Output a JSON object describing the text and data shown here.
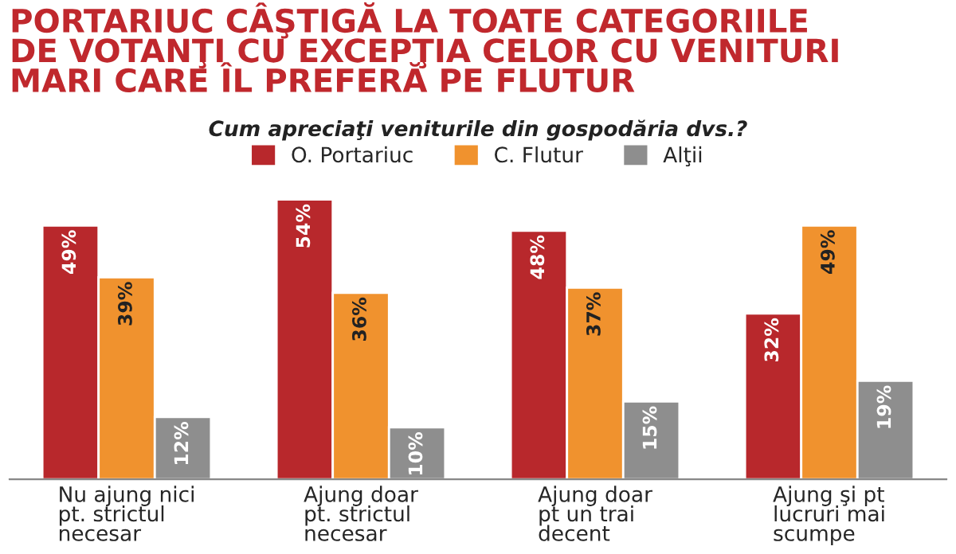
{
  "chart_data": {
    "type": "bar",
    "title": "PORTARIUC CÂŞTIGĂ LA TOATE CATEGORIILE\nDE VOTANŢI CU EXCEPŢIA CELOR CU VENITURI\nMARI CARE ÎL PREFERĂ PE FLUTUR",
    "subtitle": "Cum apreciaţi veniturile din gospodăria dvs.?",
    "categories": [
      "Nu ajung nici\npt. strictul\nnecesar",
      "Ajung doar\npt. strictul\nnecesar",
      "Ajung doar\npt un trai\ndecent",
      "Ajung şi pt\nlucruri mai\nscumpe"
    ],
    "series": [
      {
        "name": "O. Portariuc",
        "color": "#b8282c",
        "values": [
          49,
          54,
          48,
          32
        ],
        "value_labels": [
          "49%",
          "54%",
          "48%",
          "32%"
        ]
      },
      {
        "name": "C. Flutur",
        "color": "#f0922e",
        "values": [
          39,
          36,
          37,
          49
        ],
        "value_labels": [
          "39%",
          "36%",
          "37%",
          "49%"
        ]
      },
      {
        "name": "Alţii",
        "color": "#8e8e8e",
        "values": [
          12,
          10,
          15,
          19
        ],
        "value_labels": [
          "12%",
          "10%",
          "15%",
          "19%"
        ]
      }
    ],
    "legend": "top"
  }
}
